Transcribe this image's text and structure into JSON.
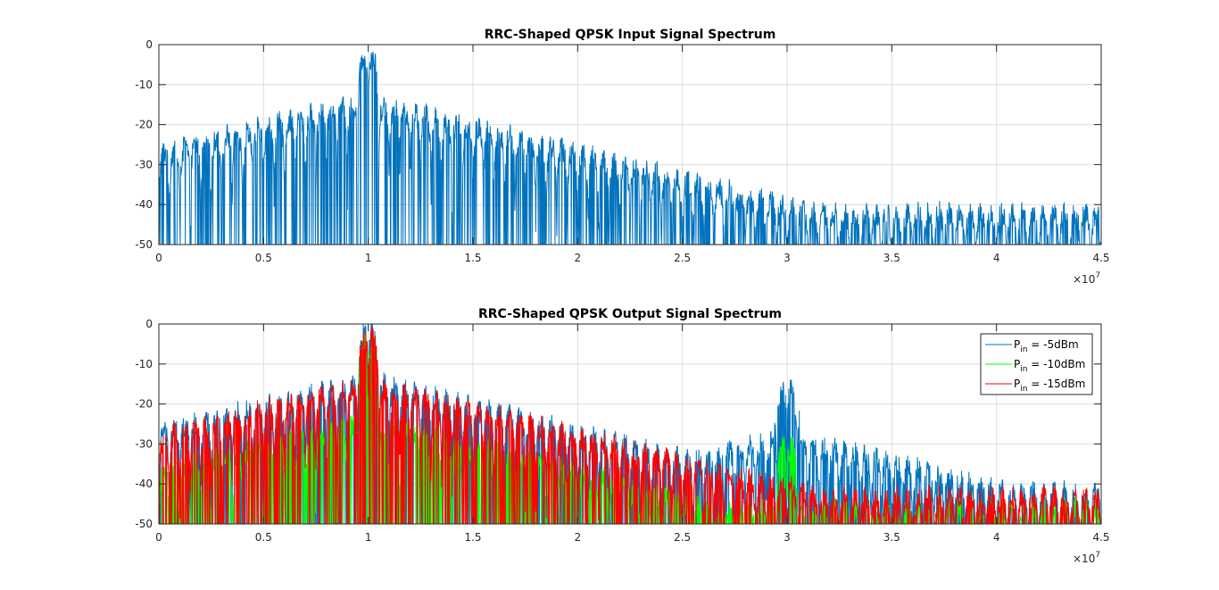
{
  "chart_data": [
    {
      "type": "line",
      "title": "RRC-Shaped QPSK Input Signal Spectrum",
      "xlabel": "",
      "ylabel": "",
      "xlim": [
        0,
        45000000
      ],
      "ylim": [
        -50,
        0
      ],
      "xticks": [
        0,
        5000000,
        10000000,
        15000000,
        20000000,
        25000000,
        30000000,
        35000000,
        40000000,
        45000000
      ],
      "xtick_labels": [
        "0",
        "0.5",
        "1",
        "1.5",
        "2",
        "2.5",
        "3",
        "3.5",
        "4",
        "4.5"
      ],
      "x_exponent": "×10",
      "x_exponent_power": "7",
      "yticks": [
        -50,
        -40,
        -30,
        -20,
        -10,
        0
      ],
      "ytick_labels": [
        "-50",
        "-40",
        "-30",
        "-20",
        "-10",
        "0"
      ],
      "grid": true,
      "legend": null,
      "series": [
        {
          "color": "#0072bd",
          "floor": -50,
          "lobe_spacing": 500000,
          "peaks": [
            {
              "center": 10000000,
              "level": 0,
              "width": 500000
            },
            {
              "center": 30000000,
              "level": -200,
              "width": 500000
            }
          ],
          "sidelobe_decay_db_per_1e7": 13,
          "sidelobe_start_offset": -14,
          "far_level": -42
        }
      ]
    },
    {
      "type": "line",
      "title": "RRC-Shaped QPSK Output Signal Spectrum",
      "xlabel": "",
      "ylabel": "",
      "xlim": [
        0,
        45000000
      ],
      "ylim": [
        -50,
        0
      ],
      "xticks": [
        0,
        5000000,
        10000000,
        15000000,
        20000000,
        25000000,
        30000000,
        35000000,
        40000000,
        45000000
      ],
      "xtick_labels": [
        "0",
        "0.5",
        "1",
        "1.5",
        "2",
        "2.5",
        "3",
        "3.5",
        "4",
        "4.5"
      ],
      "x_exponent": "×10",
      "x_exponent_power": "7",
      "yticks": [
        -50,
        -40,
        -30,
        -20,
        -10,
        0
      ],
      "ytick_labels": [
        "-50",
        "-40",
        "-30",
        "-20",
        "-10",
        "0"
      ],
      "grid": true,
      "legend": "top-right",
      "series": [
        {
          "name_main": "P",
          "name_sub": "in",
          "name_rest": " = -5dBm",
          "color": "#0072bd",
          "floor": -50,
          "lobe_spacing": 500000,
          "peaks": [
            {
              "center": 10000000,
              "level": 0,
              "width": 500000
            },
            {
              "center": 30000000,
              "level": -14,
              "width": 600000
            }
          ],
          "sidelobe_decay_db_per_1e7": 13,
          "sidelobe_start_offset": -14,
          "far_level": -42
        },
        {
          "name_main": "P",
          "name_sub": "in",
          "name_rest": " = -10dBm",
          "color": "#00ff00",
          "floor": -50,
          "lobe_spacing": 500000,
          "peaks": [
            {
              "center": 10000000,
              "level": -2,
              "width": 500000
            },
            {
              "center": 30000000,
              "level": -28,
              "width": 500000
            }
          ],
          "sidelobe_decay_db_per_1e7": 13,
          "sidelobe_start_offset": -22,
          "far_level": -46
        },
        {
          "name_main": "P",
          "name_sub": "in",
          "name_rest": " = -15dBm",
          "color": "#ff0000",
          "floor": -50,
          "lobe_spacing": 500000,
          "peaks": [
            {
              "center": 10000000,
              "level": -1,
              "width": 500000
            },
            {
              "center": 30000000,
              "level": -38,
              "width": 500000
            }
          ],
          "sidelobe_decay_db_per_1e7": 13,
          "sidelobe_start_offset": -14,
          "far_level": -43
        }
      ]
    }
  ]
}
